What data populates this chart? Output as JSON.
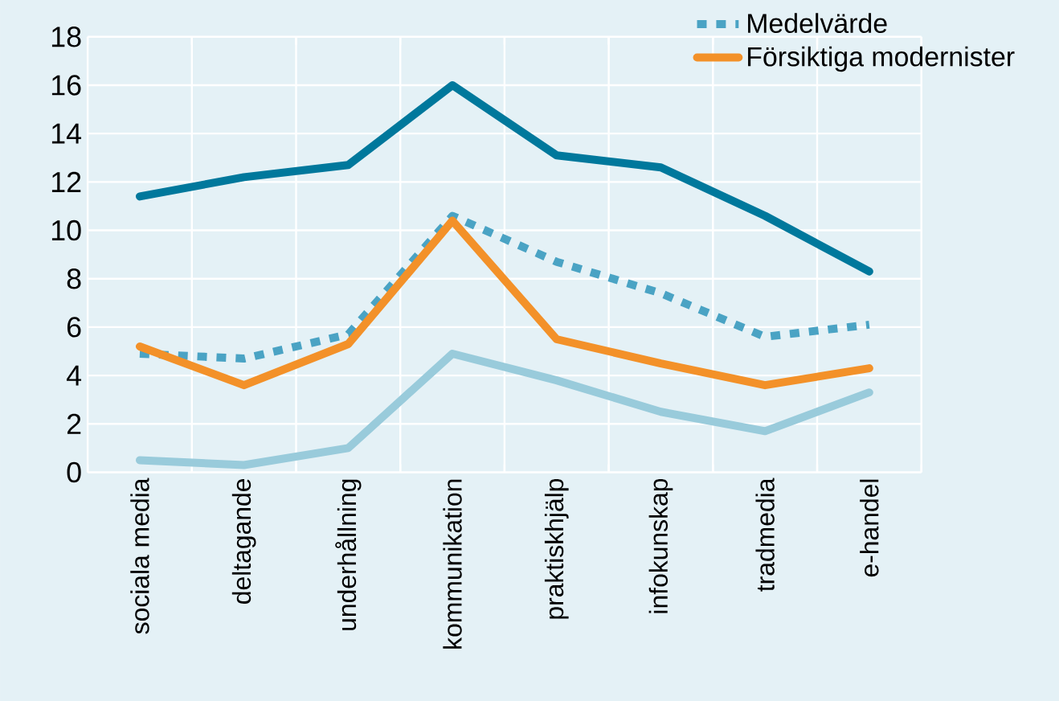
{
  "chart_data": {
    "type": "line",
    "categories": [
      "sociala media",
      "deltagande",
      "underhållning",
      "kommunikation",
      "praktiskhjälp",
      "infokunskap",
      "tradmedia",
      "e-handel"
    ],
    "series": [
      {
        "color": "#00789c",
        "values": [
          11.4,
          12.2,
          12.7,
          16.0,
          13.1,
          12.6,
          10.6,
          8.3
        ]
      },
      {
        "color": "#99cbdb",
        "values": [
          0.5,
          0.3,
          1.0,
          4.9,
          3.8,
          2.5,
          1.7,
          3.3
        ]
      },
      {
        "name": "Medelvärde",
        "color": "#4aa3c4",
        "line_style": "dotted",
        "values": [
          4.9,
          4.7,
          5.7,
          10.6,
          8.7,
          7.4,
          5.6,
          6.1
        ]
      },
      {
        "name": "Försiktiga modernister",
        "color": "#f39129",
        "line_style": "solid",
        "values": [
          5.2,
          3.6,
          5.3,
          10.4,
          5.5,
          4.5,
          3.6,
          4.3
        ]
      }
    ],
    "ylim": [
      0,
      18
    ],
    "yticks": [
      0,
      2,
      4,
      6,
      8,
      10,
      12,
      14,
      16,
      18
    ],
    "grid": true,
    "legend": "top right",
    "marker": "none"
  }
}
